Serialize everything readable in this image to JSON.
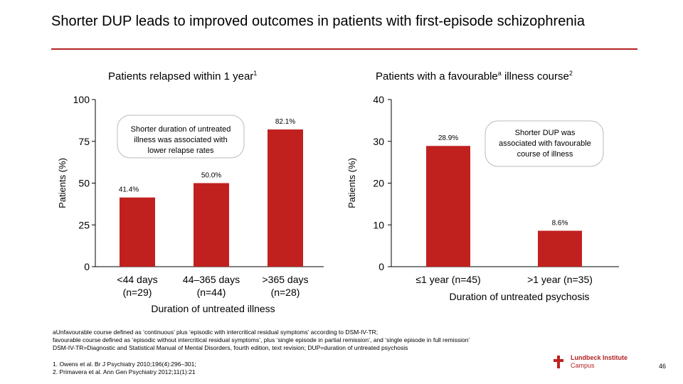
{
  "slide": {
    "title": "Shorter DUP leads to improved outcomes in patients with first-episode schizophrenia",
    "page_number": "46",
    "accent_color": "#c0211f"
  },
  "panels": {
    "left_title": "Patients relapsed within 1 year",
    "left_title_sup": "1",
    "right_title_pre": "Patients with a favourable",
    "right_title_sup_a": "a",
    "right_title_post": " illness course",
    "right_title_sup": "2"
  },
  "chart_data": [
    {
      "type": "bar",
      "title": "Patients relapsed within 1 year",
      "ylabel": "Patients (%)",
      "xlabel": "Duration of untreated illness",
      "ylim": [
        0,
        100
      ],
      "yticks": [
        "0",
        "25",
        "50",
        "75",
        "100"
      ],
      "categories": [
        [
          "<44 days",
          "(n=29)"
        ],
        [
          "44–365 days",
          "(n=44)"
        ],
        [
          ">365 days",
          "(n=28)"
        ]
      ],
      "values": [
        41.4,
        50.0,
        82.1
      ],
      "labels": [
        "41.4%",
        "50.0%",
        "82.1%"
      ],
      "annotation": [
        "Shorter duration of untreated",
        "illness was associated with",
        "lower relapse rates"
      ]
    },
    {
      "type": "bar",
      "title": "Patients with a favourable illness course",
      "ylabel": "Patients (%)",
      "xlabel": "Duration of untreated psychosis",
      "ylim": [
        0,
        40
      ],
      "yticks": [
        "0",
        "10",
        "20",
        "30",
        "40"
      ],
      "categories": [
        [
          "≤1 year (n=45)"
        ],
        [
          ">1 year (n=35)"
        ]
      ],
      "values": [
        28.9,
        8.6
      ],
      "labels": [
        "28.9%",
        "8.6%"
      ],
      "annotation": [
        "Shorter DUP was",
        "associated with favourable",
        "course of illness"
      ]
    }
  ],
  "footnotes": {
    "line1": "aUnfavourable course defined as ‘continuous’ plus ‘episodic with intercritical residual symptoms’ according to DSM-IV-TR;",
    "line2": "favourable course defined as ‘episodic without intercritical residual symptoms’, plus ‘single episode in partial remission’, and ‘single episode in full remission’",
    "line3": "DSM-IV-TR=Diagnostic and Statistical Manual of Mental Disorders, fourth edition, text revision; DUP=duration of untreated psychosis"
  },
  "references": {
    "ref1": "1. Owens et al. Br J Psychiatry 2010;196(4):296–301;",
    "ref2": "2. Primavera et al. Ann Gen Psychiatry 2012;11(1):21"
  },
  "logo": {
    "line1": "Lundbeck Institute",
    "line2": "Campus"
  }
}
